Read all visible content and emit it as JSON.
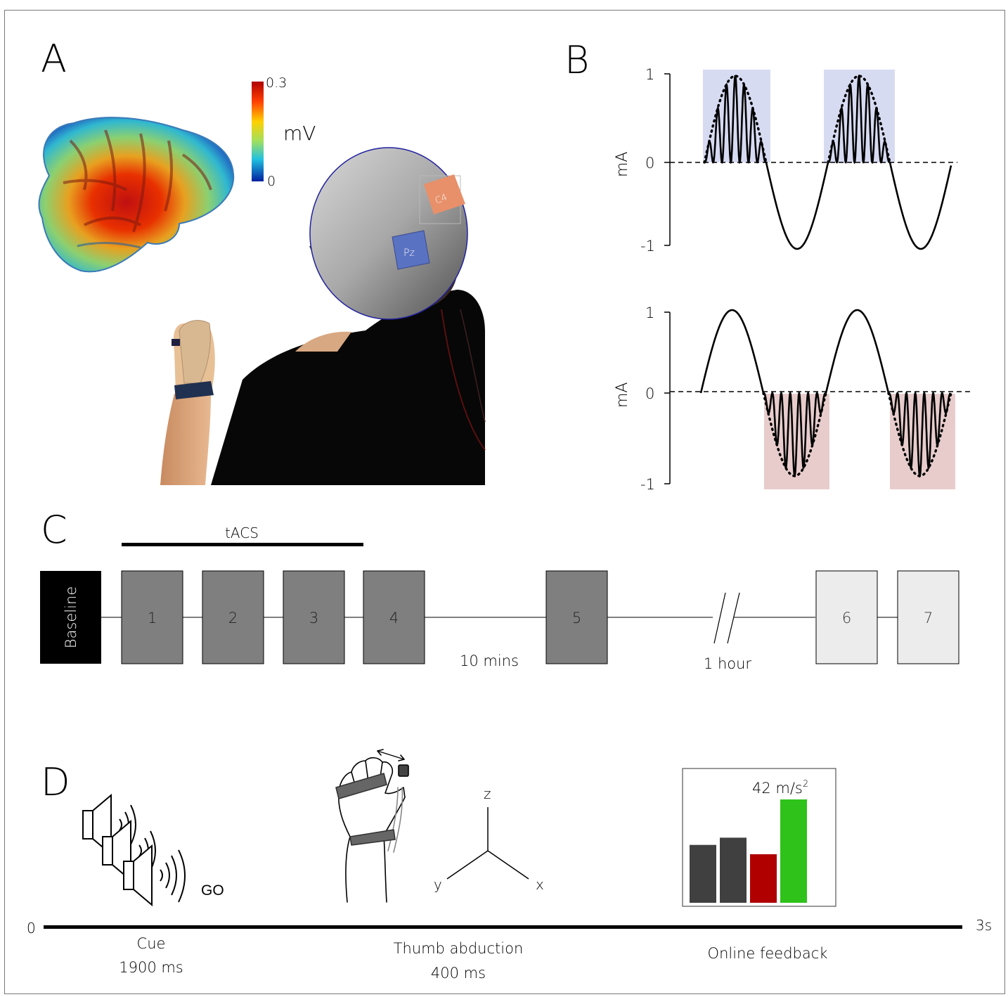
{
  "panels": {
    "a": "A",
    "b": "B",
    "c": "C",
    "d": "D"
  },
  "panel_a": {
    "colorbar": {
      "max": "0.3",
      "min": "0",
      "unit": "mV"
    },
    "electrodes": {
      "c4": "C4",
      "pz": "Pz"
    },
    "colors": {
      "c4": "#e8906a",
      "pz": "#5a72c2"
    }
  },
  "panel_b": {
    "top": {
      "ylabel": "mA",
      "ticks": [
        "1",
        "0",
        "-1"
      ],
      "highlight": "#d7dbf2"
    },
    "bottom": {
      "ylabel": "mA",
      "ticks": [
        "1",
        "0",
        "-1"
      ],
      "highlight": "#e8cccc"
    }
  },
  "panel_c": {
    "tacs_label": "tACS",
    "baseline_label": "Baseline",
    "blocks": [
      "1",
      "2",
      "3",
      "4",
      "5",
      "6",
      "7"
    ],
    "gap1_label": "10 mins",
    "gap2_label": "1 hour",
    "colors": {
      "baseline": "#000000",
      "stim": "#7f7f7f",
      "late": "#ececec"
    }
  },
  "panel_d": {
    "go_label": "GO",
    "axes": {
      "x": "x",
      "y": "y",
      "z": "z"
    },
    "feedback_value": "42 m/s",
    "feedback_sup": "2",
    "bars": [
      {
        "value": 0.56,
        "color": "#404040"
      },
      {
        "value": 0.63,
        "color": "#404040"
      },
      {
        "value": 0.47,
        "color": "#b00000"
      },
      {
        "value": 1.0,
        "color": "#2ec21a"
      }
    ],
    "timeline": {
      "start": "0",
      "end": "3s"
    },
    "phases": [
      {
        "name": "Cue",
        "duration": "1900 ms"
      },
      {
        "name": "Thumb abduction",
        "duration": "400 ms"
      },
      {
        "name": "Online feedback",
        "duration": ""
      }
    ]
  }
}
